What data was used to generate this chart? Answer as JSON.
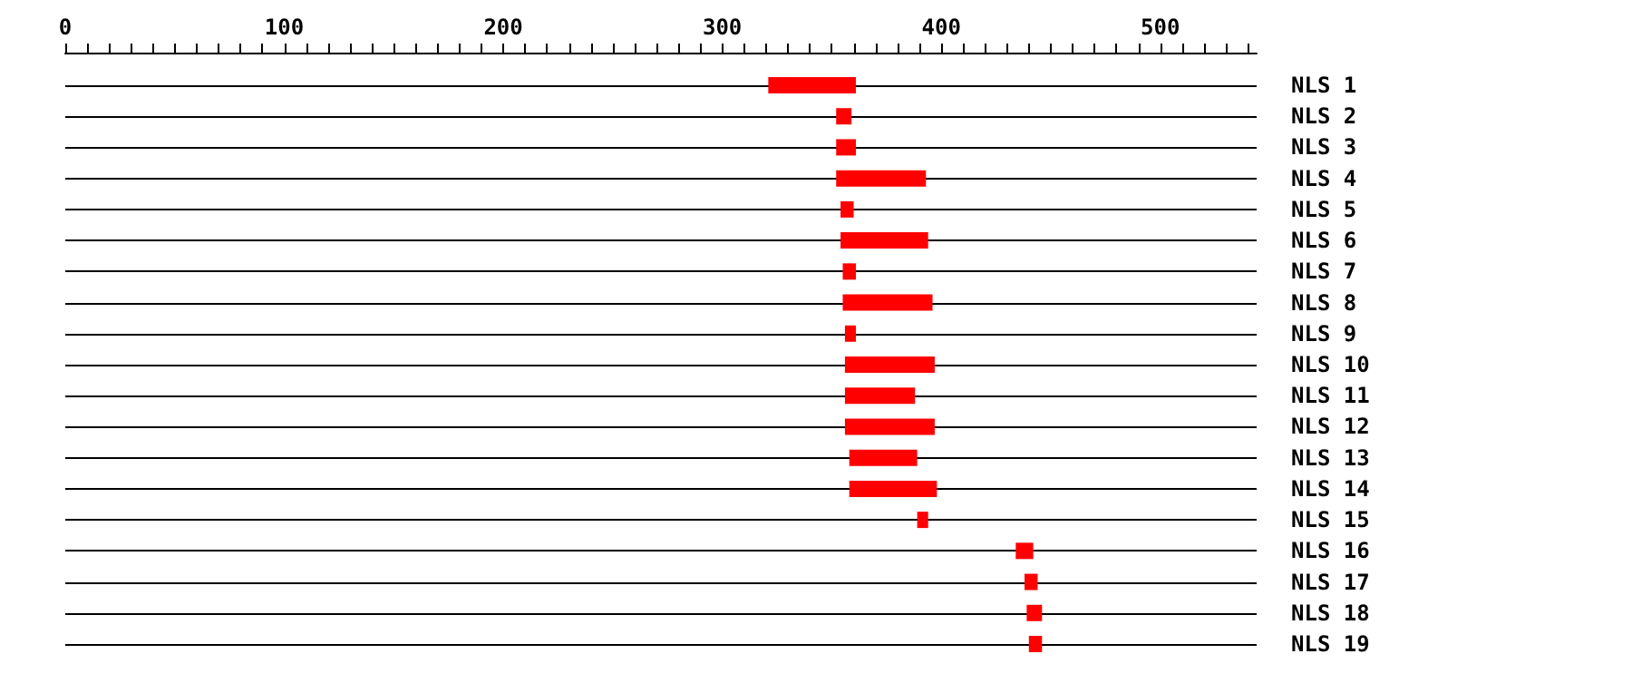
{
  "chart_data": {
    "type": "bar",
    "orientation": "horizontal",
    "categories": [
      "NLS 1",
      "NLS 2",
      "NLS 3",
      "NLS 4",
      "NLS 5",
      "NLS 6",
      "NLS 7",
      "NLS 8",
      "NLS 9",
      "NLS 10",
      "NLS 11",
      "NLS 12",
      "NLS 13",
      "NLS 14",
      "NLS 15",
      "NLS 16",
      "NLS 17",
      "NLS 18",
      "NLS 19"
    ],
    "base": [
      321,
      352,
      352,
      352,
      354,
      354,
      355,
      355,
      356,
      356,
      356,
      356,
      358,
      358,
      389,
      434,
      438,
      439,
      440
    ],
    "values": [
      40,
      7,
      9,
      41,
      6,
      40,
      6,
      41,
      5,
      41,
      32,
      41,
      31,
      40,
      5,
      8,
      6,
      7,
      6
    ],
    "color": "#ff0000",
    "xlim": [
      0,
      544
    ],
    "xticks": [
      0,
      {
        "value": 10,
        "label": null
      },
      {
        "value": 20,
        "label": null
      },
      {
        "value": 30,
        "label": null
      },
      {
        "value": 40,
        "label": null
      },
      {
        "value": 50,
        "label": null
      },
      {
        "value": 60,
        "label": null
      },
      {
        "value": 70,
        "label": null
      },
      {
        "value": 80,
        "label": null
      },
      {
        "value": 90,
        "label": null
      },
      100,
      {
        "value": 110,
        "label": null
      },
      {
        "value": 120,
        "label": null
      },
      {
        "value": 130,
        "label": null
      },
      {
        "value": 140,
        "label": null
      },
      {
        "value": 150,
        "label": null
      },
      {
        "value": 160,
        "label": null
      },
      {
        "value": 170,
        "label": null
      },
      {
        "value": 180,
        "label": null
      },
      {
        "value": 190,
        "label": null
      },
      200,
      {
        "value": 210,
        "label": null
      },
      {
        "value": 220,
        "label": null
      },
      {
        "value": 230,
        "label": null
      },
      {
        "value": 240,
        "label": null
      },
      {
        "value": 250,
        "label": null
      },
      {
        "value": 260,
        "label": null
      },
      {
        "value": 270,
        "label": null
      },
      {
        "value": 280,
        "label": null
      },
      {
        "value": 290,
        "label": null
      },
      300,
      {
        "value": 310,
        "label": null
      },
      {
        "value": 320,
        "label": null
      },
      {
        "value": 330,
        "label": null
      },
      {
        "value": 340,
        "label": null
      },
      {
        "value": 350,
        "label": null
      },
      {
        "value": 360,
        "label": null
      },
      {
        "value": 370,
        "label": null
      },
      {
        "value": 380,
        "label": null
      },
      {
        "value": 390,
        "label": null
      },
      400,
      {
        "value": 410,
        "label": null
      },
      {
        "value": 420,
        "label": null
      },
      {
        "value": 430,
        "label": null
      },
      {
        "value": 440,
        "label": null
      },
      {
        "value": 450,
        "label": null
      },
      {
        "value": 460,
        "label": null
      },
      {
        "value": 470,
        "label": null
      },
      {
        "value": 480,
        "label": null
      },
      {
        "value": 490,
        "label": null
      },
      500,
      {
        "value": 510,
        "label": null
      },
      {
        "value": 520,
        "label": null
      },
      {
        "value": 530,
        "label": null
      },
      {
        "value": 540,
        "label": null
      }
    ],
    "grid": "y"
  }
}
